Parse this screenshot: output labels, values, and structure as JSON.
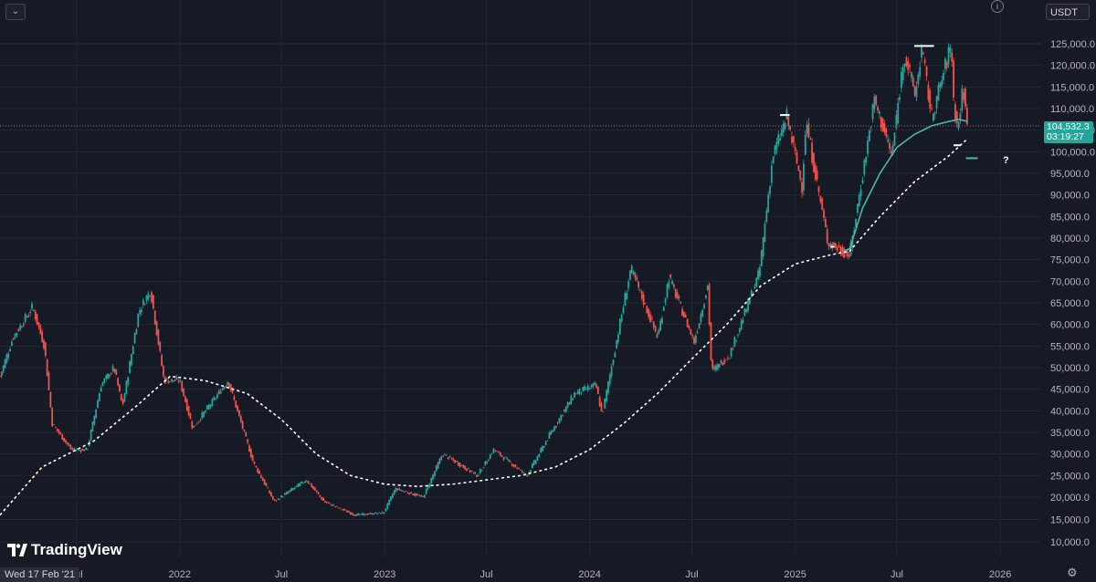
{
  "toolbar": {
    "collapse_icon": "chevron-down-icon",
    "collapse_glyph": "⌄",
    "info_glyph": "i"
  },
  "currency_label": "USDT",
  "last_price": {
    "value": "104,532.3",
    "countdown": "03:19:27"
  },
  "branding": {
    "name": "TradingView"
  },
  "crosshair_date": "Wed 17 Feb '21",
  "annotation": "?",
  "settings_icon": "gear-icon",
  "settings_glyph": "⚙",
  "colors": {
    "background": "#161a25",
    "up": "#26a69a",
    "down": "#ef5350",
    "ma_teal": "#4db6ac",
    "ma_dotted": "#ffffff",
    "grid": "#222633"
  },
  "chart_data": {
    "type": "line",
    "title": "",
    "xlabel": "",
    "ylabel": "",
    "y_tick_labels": [
      "125,000.0",
      "120,000.0",
      "115,000.0",
      "110,000.0",
      "105,000.0",
      "100,000.0",
      "95,000.0",
      "90,000.0",
      "85,000.0",
      "80,000.0",
      "75,000.0",
      "70,000.0",
      "65,000.0",
      "60,000.0",
      "55,000.0",
      "50,000.0",
      "45,000.0",
      "40,000.0",
      "35,000.0",
      "30,000.0",
      "25,000.0",
      "20,000.0",
      "15,000.0",
      "10,000.0"
    ],
    "y_ticks": [
      125000,
      120000,
      115000,
      110000,
      105000,
      100000,
      95000,
      90000,
      85000,
      80000,
      75000,
      70000,
      65000,
      60000,
      55000,
      50000,
      45000,
      40000,
      35000,
      30000,
      25000,
      20000,
      15000,
      10000
    ],
    "x_tick_labels": [
      {
        "label": "Jul",
        "date": "2021-07-01"
      },
      {
        "label": "2022",
        "date": "2022-01-01"
      },
      {
        "label": "Jul",
        "date": "2022-07-01"
      },
      {
        "label": "2023",
        "date": "2023-01-01"
      },
      {
        "label": "Jul",
        "date": "2023-07-01"
      },
      {
        "label": "2024",
        "date": "2024-01-01"
      },
      {
        "label": "Jul",
        "date": "2024-07-01"
      },
      {
        "label": "2025",
        "date": "2025-01-01"
      },
      {
        "label": "Jul",
        "date": "2025-07-01"
      },
      {
        "label": "2026",
        "date": "2026-01-01"
      }
    ],
    "ylim": [
      8000,
      128000
    ],
    "xlim": [
      "2021-02-15",
      "2026-03-15"
    ],
    "grid": true,
    "series": [
      {
        "kind": "price",
        "x": [
          "2021-02-15",
          "2021-03-10",
          "2021-04-14",
          "2021-05-05",
          "2021-05-19",
          "2021-06-22",
          "2021-07-20",
          "2021-08-14",
          "2021-09-06",
          "2021-09-21",
          "2021-10-20",
          "2021-11-10",
          "2021-12-04",
          "2022-01-01",
          "2022-01-24",
          "2022-03-28",
          "2022-05-12",
          "2022-06-18",
          "2022-08-14",
          "2022-09-15",
          "2022-11-09",
          "2022-12-30",
          "2023-01-20",
          "2023-03-10",
          "2023-04-14",
          "2023-06-15",
          "2023-07-14",
          "2023-09-11",
          "2023-10-24",
          "2023-12-05",
          "2024-01-12",
          "2024-01-23",
          "2024-03-14",
          "2024-05-01",
          "2024-05-21",
          "2024-07-05",
          "2024-07-29",
          "2024-08-05",
          "2024-09-06",
          "2024-10-29",
          "2024-11-22",
          "2024-12-17",
          "2025-01-13",
          "2025-01-20",
          "2025-02-28",
          "2025-04-08",
          "2025-05-22",
          "2025-06-22",
          "2025-07-14",
          "2025-08-03",
          "2025-08-14",
          "2025-09-01",
          "2025-10-06",
          "2025-10-10",
          "2025-10-17",
          "2025-10-27",
          "2025-11-04"
        ],
        "values": [
          48000,
          57000,
          64000,
          55000,
          37000,
          31000,
          31000,
          46000,
          50000,
          41000,
          63000,
          68000,
          47000,
          47000,
          36000,
          47000,
          28000,
          19000,
          24000,
          19000,
          16000,
          16500,
          22000,
          20000,
          30000,
          25000,
          31000,
          25000,
          35000,
          44000,
          46000,
          39000,
          73000,
          57000,
          71000,
          56000,
          69000,
          49000,
          53000,
          72000,
          99000,
          108000,
          92000,
          107000,
          79000,
          76000,
          112000,
          99000,
          123000,
          113000,
          124000,
          108000,
          125000,
          112000,
          105000,
          115000,
          104500
        ]
      },
      {
        "kind": "ma_dotted",
        "x": [
          "2021-02-15",
          "2021-05-01",
          "2021-08-01",
          "2021-10-15",
          "2021-12-15",
          "2022-02-15",
          "2022-05-01",
          "2022-07-01",
          "2022-09-01",
          "2022-11-01",
          "2023-01-01",
          "2023-03-01",
          "2023-05-01",
          "2023-07-01",
          "2023-09-01",
          "2023-11-01",
          "2024-01-01",
          "2024-03-01",
          "2024-05-01",
          "2024-07-01",
          "2024-09-01",
          "2024-11-01",
          "2025-01-01",
          "2025-03-01",
          "2025-04-08",
          "2025-06-01",
          "2025-08-01",
          "2025-10-01",
          "2025-11-04"
        ],
        "values": [
          16000,
          27000,
          33000,
          41000,
          48000,
          47000,
          44000,
          38000,
          30000,
          25000,
          23000,
          22500,
          23000,
          24000,
          25000,
          27000,
          31000,
          37000,
          44000,
          52000,
          60000,
          69000,
          74000,
          76000,
          77000,
          85000,
          93000,
          99000,
          103000
        ]
      },
      {
        "kind": "ma_teal",
        "x": [
          "2025-03-28",
          "2025-04-08",
          "2025-05-01",
          "2025-06-01",
          "2025-07-01",
          "2025-08-01",
          "2025-09-01",
          "2025-10-01",
          "2025-10-20",
          "2025-11-04"
        ],
        "values": [
          77000,
          77500,
          87000,
          95000,
          101000,
          104000,
          106000,
          107000,
          107500,
          107000
        ]
      }
    ],
    "level_markers": [
      {
        "from": "2024-12-05",
        "to": "2024-12-22",
        "value": 108500,
        "kind": "high"
      },
      {
        "from": "2025-03-05",
        "to": "2025-03-12",
        "value": 78000,
        "kind": "low"
      },
      {
        "from": "2025-08-01",
        "to": "2025-09-05",
        "value": 124500,
        "kind": "high"
      },
      {
        "from": "2025-10-10",
        "to": "2025-10-22",
        "value": 101500,
        "kind": "low"
      },
      {
        "from": "2025-11-01",
        "to": "2025-11-22",
        "value": 98500,
        "kind": "target"
      }
    ]
  }
}
